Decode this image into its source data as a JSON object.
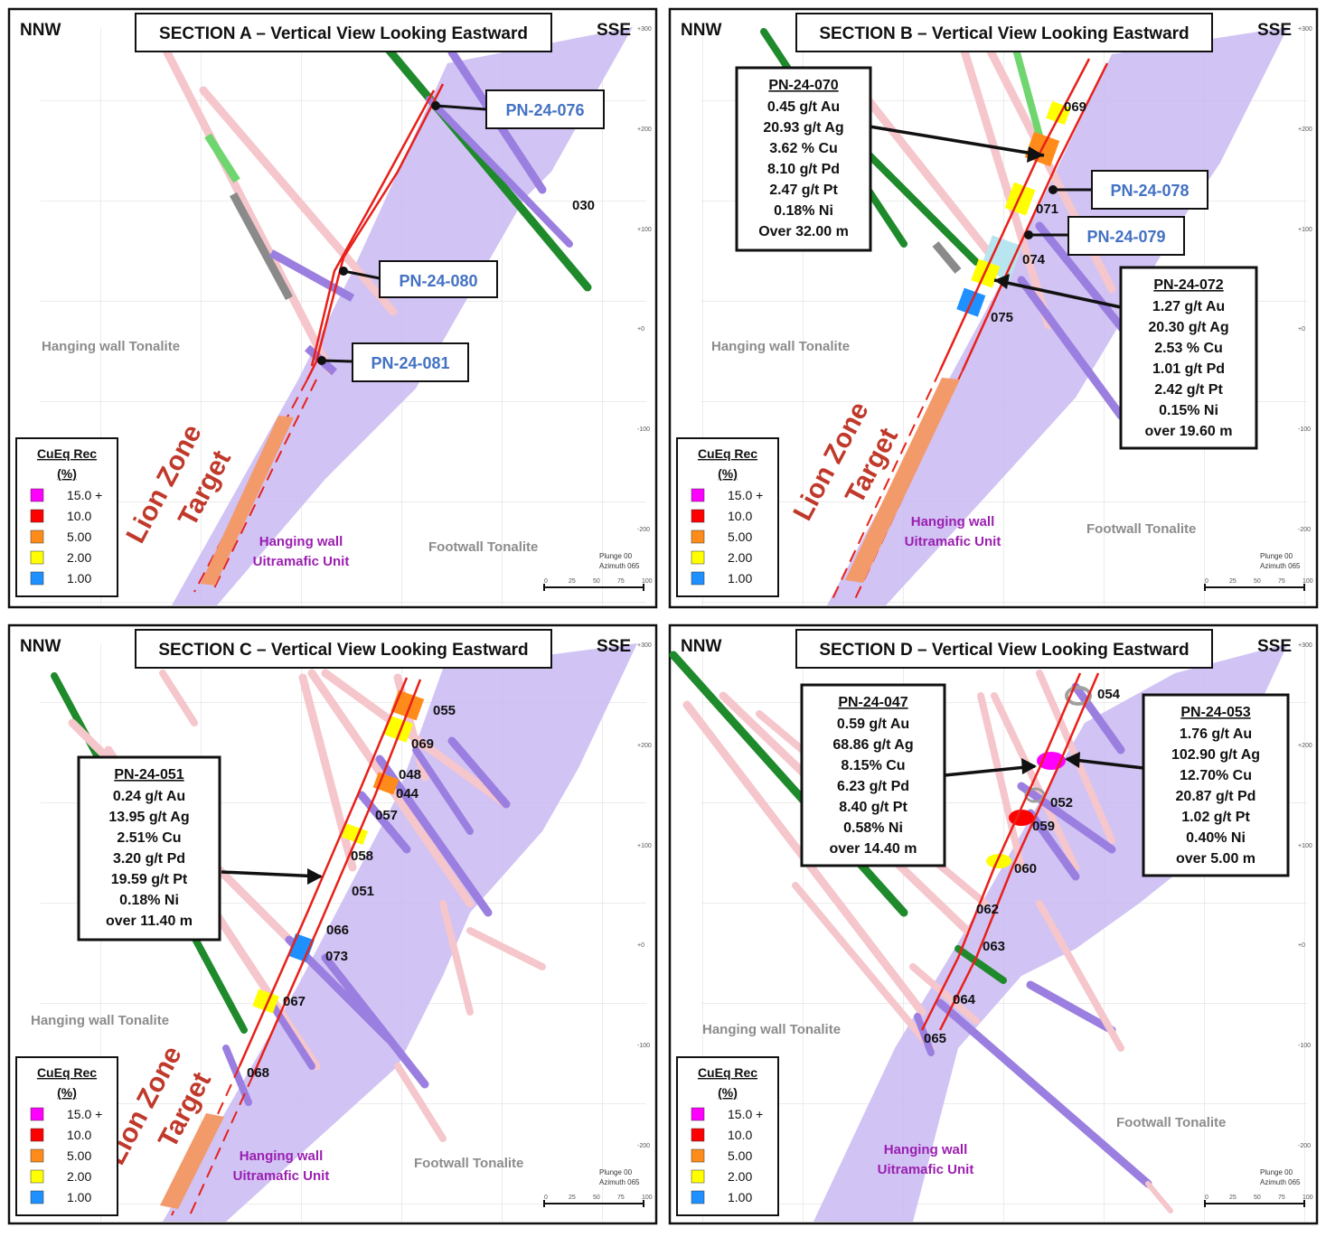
{
  "colors": {
    "ultramafic": "#c9b8f2",
    "fault": "#e8201a",
    "target": "#f39a6b",
    "callout_text": "#4472c4",
    "legend": [
      "#ff00ff",
      "#ff0000",
      "#ff8c1a",
      "#ffff00",
      "#1e90ff"
    ]
  },
  "panels": [
    {
      "title": "SECTION A – Vertical View Looking Eastward",
      "left_dir": "NNW",
      "right_dir": "SSE",
      "hanging_wall": "Hanging wall Tonalite",
      "um_line1": "Hanging wall",
      "um_line2": "Uitramafic Unit",
      "footwall": "Footwall Tonalite",
      "lion1": "Lion Zone",
      "lion2": "Target",
      "hole_labels": [
        "030"
      ],
      "callouts": [
        "PN-24-076",
        "PN-24-080",
        "PN-24-081"
      ],
      "assays": []
    },
    {
      "title": "SECTION B – Vertical View Looking Eastward",
      "left_dir": "NNW",
      "right_dir": "SSE",
      "hanging_wall": "Hanging wall Tonalite",
      "um_line1": "Hanging wall",
      "um_line2": "Uitramafic Unit",
      "footwall": "Footwall Tonalite",
      "lion1": "Lion Zone",
      "lion2": "Target",
      "hole_labels": [
        "069",
        "071",
        "074",
        "075"
      ],
      "callouts": [
        "PN-24-078",
        "PN-24-079"
      ],
      "assays": [
        {
          "head": "PN-24-070",
          "lines": [
            "0.45 g/t Au",
            "20.93 g/t Ag",
            "3.62 % Cu",
            "8.10 g/t Pd",
            "2.47 g/t Pt",
            "0.18% Ni",
            "Over 32.00 m"
          ]
        },
        {
          "head": "PN-24-072",
          "lines": [
            "1.27 g/t Au",
            "20.30 g/t Ag",
            "2.53 % Cu",
            "1.01 g/t Pd",
            "2.42 g/t Pt",
            "0.15% Ni",
            "over 19.60 m"
          ]
        }
      ]
    },
    {
      "title": "SECTION C – Vertical View Looking Eastward",
      "left_dir": "NNW",
      "right_dir": "SSE",
      "hanging_wall": "Hanging wall Tonalite",
      "um_line1": "Hanging wall",
      "um_line2": "Uitramafic Unit",
      "footwall": "Footwall Tonalite",
      "lion1": "Lion Zone",
      "lion2": "Target",
      "hole_labels": [
        "055",
        "069",
        "048",
        "044",
        "057",
        "058",
        "051",
        "066",
        "073",
        "067",
        "068"
      ],
      "callouts": [],
      "assays": [
        {
          "head": "PN-24-051",
          "lines": [
            "0.24 g/t Au",
            "13.95 g/t Ag",
            "2.51% Cu",
            "3.20 g/t Pd",
            "19.59 g/t Pt",
            "0.18% Ni",
            "over 11.40 m"
          ]
        }
      ]
    },
    {
      "title": "SECTION D – Vertical View Looking Eastward",
      "left_dir": "NNW",
      "right_dir": "SSE",
      "hanging_wall": "Hanging wall Tonalite",
      "um_line1": "Hanging wall",
      "um_line2": "Uitramafic Unit",
      "footwall": "Footwall Tonalite",
      "lion1": "",
      "lion2": "",
      "hole_labels": [
        "054",
        "052",
        "059",
        "060",
        "062",
        "063",
        "064",
        "065"
      ],
      "callouts": [],
      "assays": [
        {
          "head": "PN-24-047",
          "lines": [
            "0.59 g/t Au",
            "68.86 g/t Ag",
            "8.15% Cu",
            "6.23 g/t Pd",
            "8.40 g/t Pt",
            "0.58% Ni",
            "over 14.40 m"
          ]
        },
        {
          "head": "PN-24-053",
          "lines": [
            "1.76 g/t Au",
            "102.90 g/t Ag",
            "12.70% Cu",
            "20.87 g/t Pd",
            "1.02 g/t Pt",
            "0.40% Ni",
            "over 5.00 m"
          ]
        }
      ]
    }
  ],
  "legend": {
    "title1": "CuEq Rec",
    "title2": "(%)",
    "items": [
      "15.0 +",
      "10.0",
      "5.00",
      "2.00",
      "1.00"
    ]
  },
  "scale": {
    "plunge": "Plunge 00",
    "azimuth": "Azimuth 065",
    "ticks": [
      "0",
      "25",
      "50",
      "75",
      "100"
    ],
    "elevations": [
      "+300",
      "+200",
      "+100",
      "+0",
      "-100",
      "-200"
    ]
  }
}
